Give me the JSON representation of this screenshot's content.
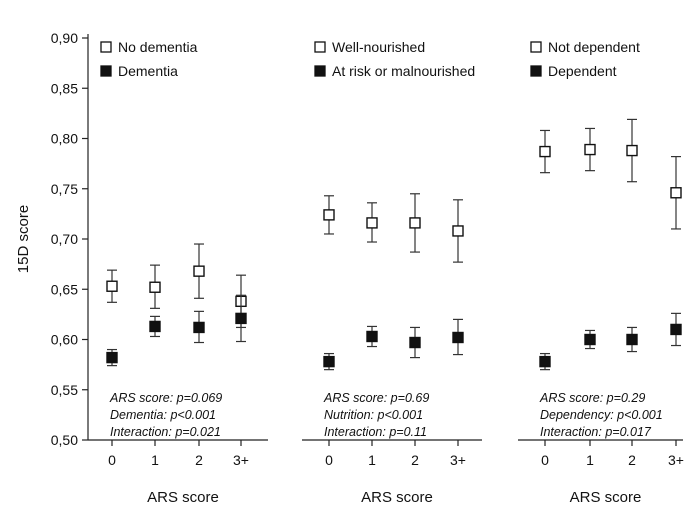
{
  "chart_data": [
    {
      "type": "scatter",
      "panel": "left",
      "categories": [
        "0",
        "1",
        "2",
        "3+"
      ],
      "xlabel": "ARS score",
      "ylabel": "15D score",
      "ylim": [
        0.5,
        0.9
      ],
      "yticks": [
        "0,50",
        "0,55",
        "0,60",
        "0,65",
        "0,70",
        "0,75",
        "0,80",
        "0,85",
        "0,90"
      ],
      "legend_position": "top-left",
      "series": [
        {
          "name": "No dementia",
          "marker": "open-square",
          "values": [
            0.653,
            0.652,
            0.668,
            0.638
          ],
          "lower": [
            0.637,
            0.631,
            0.641,
            0.612
          ],
          "upper": [
            0.669,
            0.674,
            0.695,
            0.664
          ]
        },
        {
          "name": "Dementia",
          "marker": "filled-square",
          "values": [
            0.582,
            0.613,
            0.612,
            0.621
          ],
          "lower": [
            0.574,
            0.603,
            0.597,
            0.598
          ],
          "upper": [
            0.59,
            0.623,
            0.628,
            0.644
          ]
        }
      ],
      "annotations": [
        "ARS score: p=0.069",
        "Dementia: p<0.001",
        "Interaction: p=0.021"
      ]
    },
    {
      "type": "scatter",
      "panel": "middle",
      "categories": [
        "0",
        "1",
        "2",
        "3+"
      ],
      "xlabel": "ARS score",
      "ylim": [
        0.5,
        0.9
      ],
      "legend_position": "top-left",
      "series": [
        {
          "name": "Well-nourished",
          "marker": "open-square",
          "values": [
            0.724,
            0.716,
            0.716,
            0.708
          ],
          "lower": [
            0.705,
            0.697,
            0.687,
            0.677
          ],
          "upper": [
            0.743,
            0.736,
            0.745,
            0.739
          ]
        },
        {
          "name": "At risk or malnourished",
          "marker": "filled-square",
          "values": [
            0.578,
            0.603,
            0.597,
            0.602
          ],
          "lower": [
            0.57,
            0.593,
            0.582,
            0.585
          ],
          "upper": [
            0.586,
            0.613,
            0.612,
            0.62
          ]
        }
      ],
      "annotations": [
        "ARS score: p=0.69",
        "Nutrition: p<0.001",
        "Interaction: p=0.11"
      ]
    },
    {
      "type": "scatter",
      "panel": "right",
      "categories": [
        "0",
        "1",
        "2",
        "3+"
      ],
      "xlabel": "ARS score",
      "ylim": [
        0.5,
        0.9
      ],
      "legend_position": "top-left",
      "series": [
        {
          "name": "Not dependent",
          "marker": "open-square",
          "values": [
            0.787,
            0.789,
            0.788,
            0.746
          ],
          "lower": [
            0.766,
            0.768,
            0.757,
            0.71
          ],
          "upper": [
            0.808,
            0.81,
            0.819,
            0.782
          ]
        },
        {
          "name": "Dependent",
          "marker": "filled-square",
          "values": [
            0.578,
            0.6,
            0.6,
            0.61
          ],
          "lower": [
            0.57,
            0.591,
            0.588,
            0.594
          ],
          "upper": [
            0.586,
            0.609,
            0.612,
            0.626
          ]
        }
      ],
      "annotations": [
        "ARS score: p=0.29",
        "Dependency: p<0.001",
        "Interaction: p=0.017"
      ]
    }
  ]
}
